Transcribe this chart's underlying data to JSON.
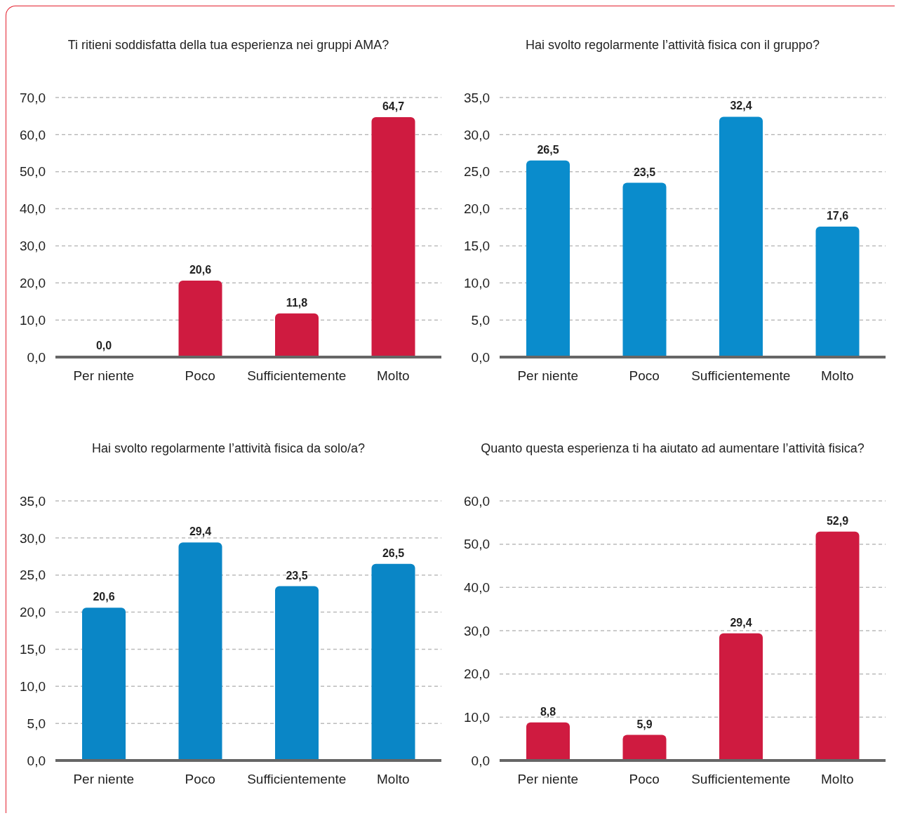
{
  "chart_data": [
    {
      "type": "bar",
      "title": "Ti ritieni soddisfatta della tua esperienza nei gruppi AMA?",
      "categories": [
        "Per niente",
        "Poco",
        "Sufficientemente",
        "Molto"
      ],
      "values": [
        0,
        20.6,
        11.8,
        64.7
      ],
      "value_labels": [
        "0,0",
        "20,6",
        "11,8",
        "64,7"
      ],
      "color": "#cf1b40",
      "ylim": [
        0,
        70
      ],
      "yticks": [
        {
          "value": 0,
          "label": "0,0"
        },
        {
          "value": 10,
          "label": "10,0"
        },
        {
          "value": 20,
          "label": "20,0"
        },
        {
          "value": 30,
          "label": "30,0"
        },
        {
          "value": 40,
          "label": "40,0"
        },
        {
          "value": 50,
          "label": "50,0"
        },
        {
          "value": 60,
          "label": "60,0"
        },
        {
          "value": 70,
          "label": "70,0"
        }
      ],
      "grid": "y",
      "legend": false
    },
    {
      "type": "bar",
      "title": "Hai svolto regolarmente l’attività fisica con il gruppo?",
      "categories": [
        "Per niente",
        "Poco",
        "Sufficientemente",
        "Molto"
      ],
      "values": [
        26.5,
        23.5,
        32.4,
        17.6
      ],
      "value_labels": [
        "26,5",
        "23,5",
        "32,4",
        "17,6"
      ],
      "color": "#0a8ccc",
      "ylim": [
        0,
        35
      ],
      "yticks": [
        {
          "value": 0,
          "label": "0,0"
        },
        {
          "value": 5,
          "label": "5,0"
        },
        {
          "value": 10,
          "label": "10,0"
        },
        {
          "value": 15,
          "label": "15,0"
        },
        {
          "value": 20,
          "label": "20,0"
        },
        {
          "value": 25,
          "label": "25,0"
        },
        {
          "value": 30,
          "label": "30,0"
        },
        {
          "value": 35,
          "label": "35,0"
        }
      ],
      "grid": "y",
      "legend": false
    },
    {
      "type": "bar",
      "title": "Hai svolto regolarmente l’attività fisica da solo/a?",
      "categories": [
        "Per niente",
        "Poco",
        "Sufficientemente",
        "Molto"
      ],
      "values": [
        20.6,
        29.4,
        23.5,
        26.5
      ],
      "value_labels": [
        "20,6",
        "29,4",
        "23,5",
        "26,5"
      ],
      "color": "#0a86c6",
      "ylim": [
        0,
        35
      ],
      "yticks": [
        {
          "value": 0,
          "label": "0,0"
        },
        {
          "value": 5,
          "label": "5,0"
        },
        {
          "value": 10,
          "label": "10,0"
        },
        {
          "value": 15,
          "label": "15,0"
        },
        {
          "value": 20,
          "label": "20,0"
        },
        {
          "value": 25,
          "label": "25,0"
        },
        {
          "value": 30,
          "label": "30,0"
        },
        {
          "value": 35,
          "label": "35,0"
        }
      ],
      "grid": "y",
      "legend": false
    },
    {
      "type": "bar",
      "title": "Quanto questa esperienza ti ha aiutato ad aumentare l’attività fisica?",
      "categories": [
        "Per niente",
        "Poco",
        "Sufficientemente",
        "Molto"
      ],
      "values": [
        8.8,
        5.9,
        29.4,
        52.9
      ],
      "value_labels": [
        "8,8",
        "5,9",
        "29,4",
        "52,9"
      ],
      "color": "#cf1b40",
      "ylim": [
        0,
        60
      ],
      "yticks": [
        {
          "value": 0,
          "label": "0,0"
        },
        {
          "value": 10,
          "label": "10,0"
        },
        {
          "value": 20,
          "label": "20,0"
        },
        {
          "value": 30,
          "label": "30,0"
        },
        {
          "value": 40,
          "label": "40,0"
        },
        {
          "value": 50,
          "label": "50,0"
        },
        {
          "value": 60,
          "label": "60,0"
        }
      ],
      "grid": "y",
      "legend": false
    }
  ]
}
